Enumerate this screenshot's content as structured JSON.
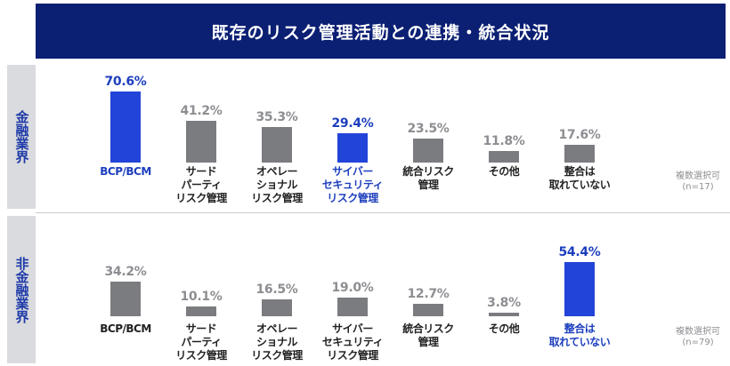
{
  "title": "既存のリスク管理活動との連携・統合状況",
  "chart_data": [
    {
      "type": "bar",
      "group_label": "金融業界",
      "note": "複数選択可\n(n=17)",
      "categories": [
        "BCP/BCM",
        "サード\nパーティ\nリスク管理",
        "オペレー\nショナル\nリスク管理",
        "サイバー\nセキュリティ\nリスク管理",
        "統合リスク\n管理",
        "その他",
        "整合は\n取れていない"
      ],
      "values": [
        70.6,
        41.2,
        35.3,
        29.4,
        23.5,
        11.8,
        17.6
      ],
      "value_labels": [
        "70.6%",
        "41.2%",
        "35.3%",
        "29.4%",
        "23.5%",
        "11.8%",
        "17.6%"
      ],
      "highlighted": [
        0,
        3
      ],
      "colors": {
        "default": "#7b7c80",
        "highlight": "#2244d8"
      }
    },
    {
      "type": "bar",
      "group_label": "非金融業界",
      "note": "複数選択可\n(n=79)",
      "categories": [
        "BCP/BCM",
        "サード\nパーティ\nリスク管理",
        "オペレー\nショナル\nリスク管理",
        "サイバー\nセキュリティ\nリスク管理",
        "統合リスク\n管理",
        "その他",
        "整合は\n取れていない"
      ],
      "values": [
        34.2,
        10.1,
        16.5,
        19.0,
        12.7,
        3.8,
        54.4
      ],
      "value_labels": [
        "34.2%",
        "10.1%",
        "16.5%",
        "19.0%",
        "12.7%",
        "3.8%",
        "54.4%"
      ],
      "highlighted": [
        6
      ],
      "colors": {
        "default": "#7b7c80",
        "highlight": "#2244d8"
      }
    }
  ]
}
